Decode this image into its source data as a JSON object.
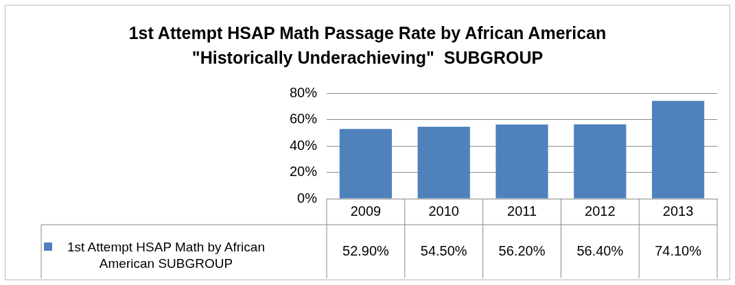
{
  "chart_data": {
    "type": "bar",
    "title": "1st Attempt HSAP Math Passage Rate by African American \"Historically Underachieving\"  SUBGROUP",
    "categories": [
      "2009",
      "2010",
      "2011",
      "2012",
      "2013"
    ],
    "series": [
      {
        "name": "1st Attempt HSAP Math by African American SUBGROUP",
        "color": "#4f81bd",
        "values": [
          52.9,
          54.5,
          56.2,
          56.4,
          74.1
        ],
        "value_labels": [
          "52.90%",
          "54.50%",
          "56.20%",
          "56.40%",
          "74.10%"
        ]
      }
    ],
    "ylim": [
      0,
      80
    ],
    "yticks": [
      {
        "value": 0,
        "label": "0%"
      },
      {
        "value": 20,
        "label": "20%"
      },
      {
        "value": 40,
        "label": "40%"
      },
      {
        "value": 60,
        "label": "60%"
      },
      {
        "value": 80,
        "label": "80%"
      }
    ],
    "grid": "y",
    "legend": "bottom left"
  }
}
